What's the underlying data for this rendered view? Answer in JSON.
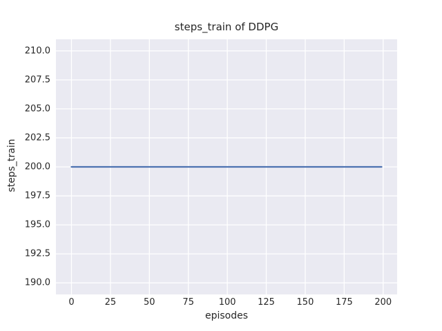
{
  "chart_data": {
    "type": "line",
    "title": "steps_train of DDPG",
    "xlabel": "episodes",
    "ylabel": "steps_train",
    "xlim": [
      -9.95,
      208.95
    ],
    "ylim": [
      189.0,
      211.0
    ],
    "xticks": [
      0,
      25,
      50,
      75,
      100,
      125,
      150,
      175,
      200
    ],
    "xticklabels": [
      "0",
      "25",
      "50",
      "75",
      "100",
      "125",
      "150",
      "175",
      "200"
    ],
    "yticks": [
      190.0,
      192.5,
      195.0,
      197.5,
      200.0,
      202.5,
      205.0,
      207.5,
      210.0
    ],
    "yticklabels": [
      "190.0",
      "192.5",
      "195.0",
      "197.5",
      "200.0",
      "202.5",
      "205.0",
      "207.5",
      "210.0"
    ],
    "grid": true,
    "legend_position": "none",
    "colors": {
      "plot_background": "#eaeaf2",
      "gridline": "#ffffff",
      "text": "#262626",
      "figure_background": "#ffffff"
    },
    "series": [
      {
        "name": "steps_train",
        "color": "#4c72b0",
        "linewidth": 2.2,
        "x": [
          0,
          199
        ],
        "y": [
          200,
          200
        ]
      }
    ]
  }
}
